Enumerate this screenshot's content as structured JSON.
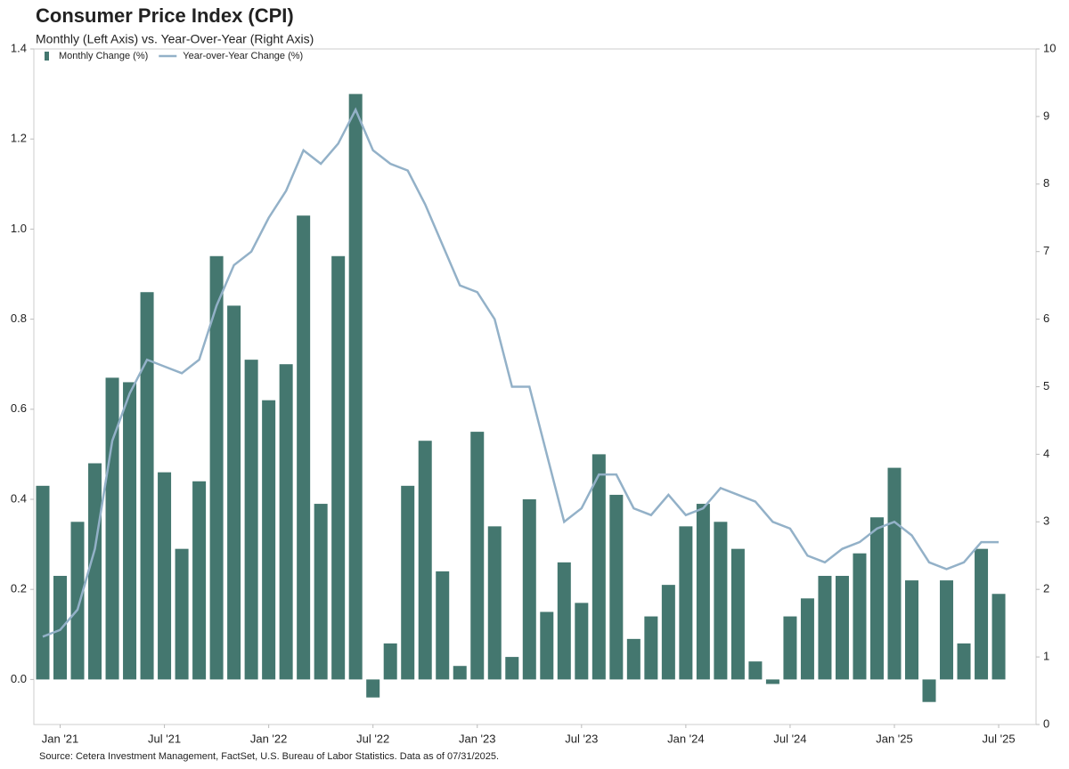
{
  "chart_data": {
    "type": "bar-line",
    "title": "Consumer Price Index (CPI)",
    "subtitle": "Monthly (Left Axis) vs. Year-Over-Year (Right Axis)",
    "source": "Source: Cetera Investment Management, FactSet, U.S. Bureau of Labor Statistics. Data as of 07/31/2025.",
    "categories": [
      null,
      "Jan '21",
      null,
      null,
      null,
      null,
      null,
      "Jul '21",
      null,
      null,
      null,
      null,
      null,
      "Jan '22",
      null,
      null,
      null,
      null,
      null,
      "Jul '22",
      null,
      null,
      null,
      null,
      null,
      "Jan '23",
      null,
      null,
      null,
      null,
      null,
      "Jul '23",
      null,
      null,
      null,
      null,
      null,
      "Jan '24",
      null,
      null,
      null,
      null,
      null,
      "Jul '24",
      null,
      null,
      null,
      null,
      null,
      "Jan '25",
      null,
      null,
      null,
      null,
      null,
      "Jul '25"
    ],
    "series": [
      {
        "name": "Monthly Change (%)",
        "type": "bar",
        "color": "#44776f",
        "values": [
          0.43,
          0.23,
          0.35,
          0.48,
          0.67,
          0.66,
          0.86,
          0.46,
          0.29,
          0.44,
          0.94,
          0.83,
          0.71,
          0.62,
          0.7,
          1.03,
          0.39,
          0.94,
          1.3,
          -0.04,
          0.08,
          0.43,
          0.53,
          0.24,
          0.03,
          0.55,
          0.34,
          0.05,
          0.4,
          0.15,
          0.26,
          0.17,
          0.5,
          0.41,
          0.09,
          0.14,
          0.21,
          0.34,
          0.39,
          0.35,
          0.29,
          0.04,
          -0.01,
          0.14,
          0.18,
          0.23,
          0.23,
          0.28,
          0.36,
          0.47,
          0.22,
          -0.05,
          0.22,
          0.08,
          0.29,
          0.19
        ]
      },
      {
        "name": "Year-over-Year Change (%)",
        "type": "line",
        "axis": "y2",
        "color": "#93b1c8",
        "values": [
          1.3,
          1.4,
          1.7,
          2.6,
          4.2,
          4.9,
          5.4,
          5.3,
          5.2,
          5.4,
          6.2,
          6.8,
          7.0,
          7.5,
          7.9,
          8.5,
          8.3,
          8.6,
          9.1,
          8.5,
          8.3,
          8.2,
          7.7,
          7.1,
          6.5,
          6.4,
          6.0,
          5.0,
          5.0,
          4.0,
          3.0,
          3.2,
          3.7,
          3.7,
          3.2,
          3.1,
          3.4,
          3.1,
          3.2,
          3.5,
          3.4,
          3.3,
          3.0,
          2.9,
          2.5,
          2.4,
          2.6,
          2.7,
          2.9,
          3.0,
          2.8,
          2.4,
          2.3,
          2.4,
          2.7,
          2.7
        ]
      }
    ],
    "ylim": [
      -0.1,
      1.4
    ],
    "yticks": [
      {
        "value": 0,
        "label": "0.0"
      },
      0.2,
      0.4,
      0.6,
      0.8,
      {
        "value": 1,
        "label": "1.0"
      },
      1.2,
      1.4
    ],
    "y2lim": [
      0,
      10
    ],
    "y2ticks": [
      0,
      1,
      2,
      3,
      4,
      5,
      6,
      7,
      8,
      9,
      10
    ],
    "legend": "top-left"
  }
}
